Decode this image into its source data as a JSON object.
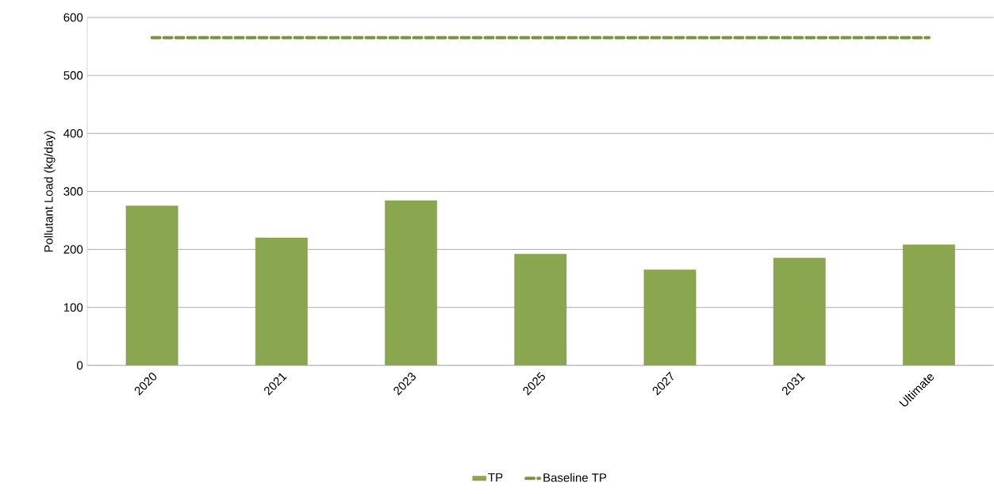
{
  "chart_data": {
    "type": "bar",
    "ylabel": "Pollutant Load (kg/day)",
    "categories": [
      "2020",
      "2021",
      "2023",
      "2025",
      "2027",
      "2031",
      "Ultimate"
    ],
    "series": [
      {
        "name": "TP",
        "color": "#8aa64f",
        "values": [
          275,
          220,
          284,
          192,
          165,
          185,
          208
        ]
      },
      {
        "name": "Baseline TP",
        "type": "line",
        "color": "#77933c",
        "line_style": "dashed",
        "marker": "none",
        "values": [
          565,
          565,
          565,
          565,
          565,
          565,
          565
        ]
      }
    ],
    "ylim": [
      0,
      600
    ],
    "yticks": [
      0,
      100,
      200,
      300,
      400,
      500,
      600
    ],
    "grid": "y",
    "legend": "bottom"
  }
}
